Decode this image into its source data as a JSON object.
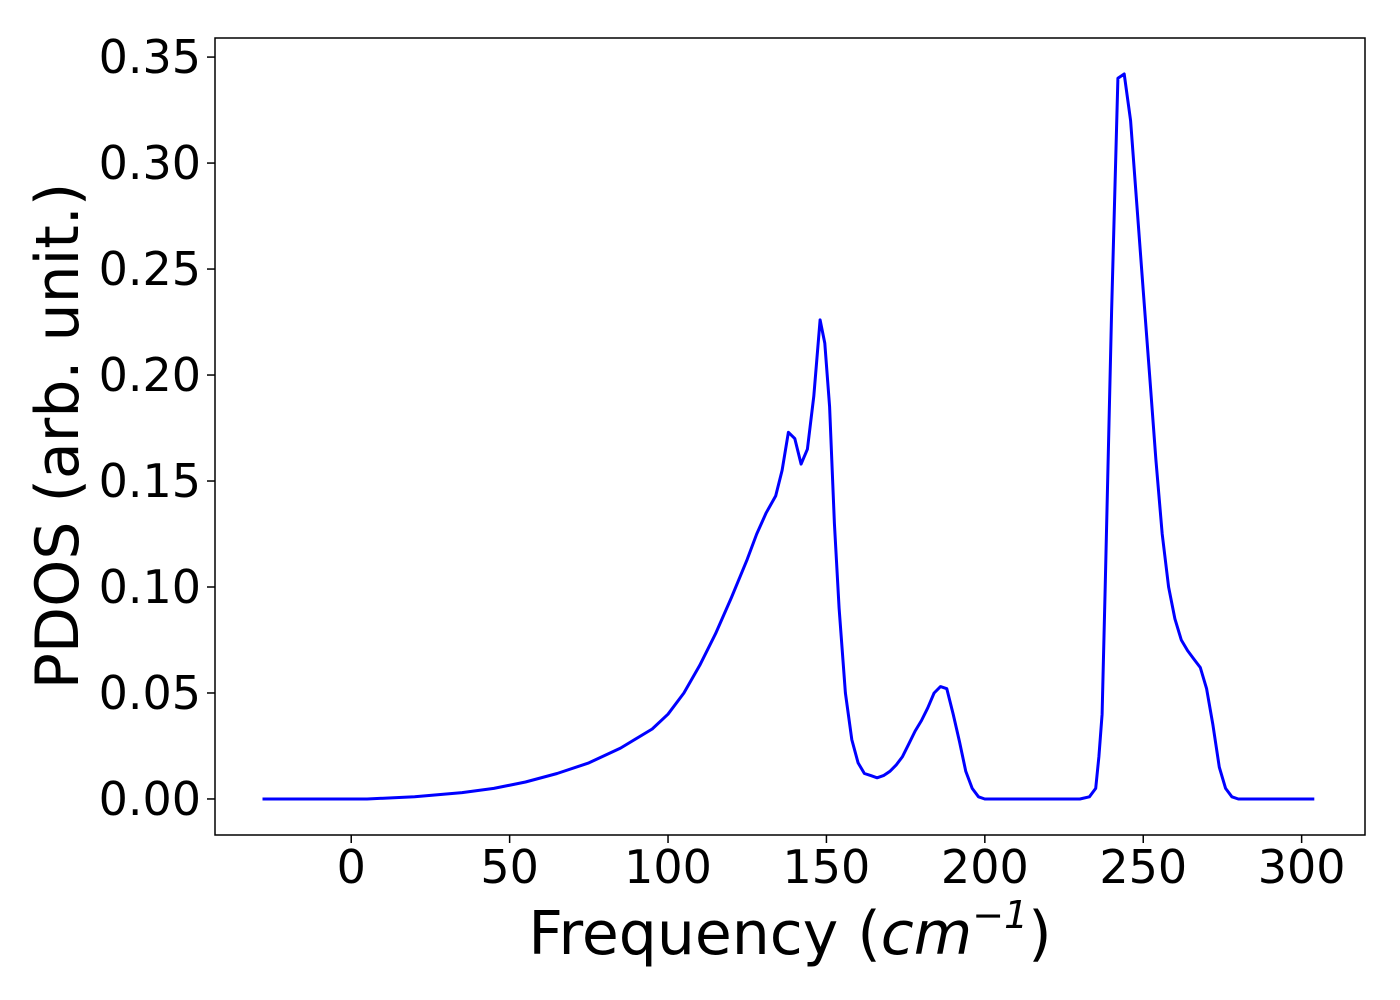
{
  "chart_data": {
    "type": "line",
    "title": "",
    "xlabel": "Frequency (",
    "xlabel_math": "cm",
    "xlabel_sup": "−1",
    "xlabel_close": ")",
    "ylabel": "PDOS (arb. unit.)",
    "xlim": [
      -43,
      320
    ],
    "ylim": [
      -0.017,
      0.359
    ],
    "xticks": [
      0,
      50,
      100,
      150,
      200,
      250,
      300
    ],
    "xtick_labels": [
      "0",
      "50",
      "100",
      "150",
      "200",
      "250",
      "300"
    ],
    "yticks": [
      0.0,
      0.05,
      0.1,
      0.15,
      0.2,
      0.25,
      0.3,
      0.35
    ],
    "ytick_labels": [
      "0.00",
      "0.05",
      "0.10",
      "0.15",
      "0.20",
      "0.25",
      "0.30",
      "0.35"
    ],
    "grid": false,
    "series": [
      {
        "color": "#0000ff",
        "x": [
          -28,
          -10,
          5,
          20,
          35,
          45,
          55,
          65,
          75,
          85,
          95,
          100,
          105,
          110,
          115,
          120,
          125,
          128,
          131,
          134,
          136,
          138,
          140,
          142,
          144,
          146,
          148,
          149.5,
          151,
          152.5,
          154,
          156,
          158,
          160,
          162,
          164,
          166,
          168,
          170,
          172,
          174,
          176,
          178,
          180,
          182,
          184,
          186,
          188,
          190,
          192,
          194,
          196,
          198,
          200,
          205,
          210,
          220,
          230,
          233,
          235,
          236,
          237,
          238,
          240,
          242,
          244,
          246,
          248,
          250,
          252,
          254,
          256,
          258,
          260,
          262,
          264,
          266,
          268,
          270,
          272,
          274,
          276,
          278,
          280,
          282,
          285,
          290,
          304
        ],
        "y": [
          0.0,
          0.0,
          0.0,
          0.001,
          0.003,
          0.005,
          0.008,
          0.012,
          0.017,
          0.024,
          0.033,
          0.04,
          0.05,
          0.063,
          0.078,
          0.095,
          0.113,
          0.125,
          0.135,
          0.143,
          0.155,
          0.173,
          0.17,
          0.158,
          0.165,
          0.19,
          0.226,
          0.215,
          0.185,
          0.13,
          0.09,
          0.05,
          0.028,
          0.017,
          0.012,
          0.011,
          0.01,
          0.011,
          0.013,
          0.016,
          0.02,
          0.026,
          0.032,
          0.037,
          0.043,
          0.05,
          0.053,
          0.052,
          0.04,
          0.027,
          0.013,
          0.005,
          0.001,
          0.0,
          0.0,
          0.0,
          0.0,
          0.0,
          0.001,
          0.005,
          0.02,
          0.04,
          0.1,
          0.23,
          0.34,
          0.342,
          0.32,
          0.28,
          0.24,
          0.2,
          0.16,
          0.125,
          0.1,
          0.085,
          0.075,
          0.07,
          0.066,
          0.062,
          0.052,
          0.035,
          0.015,
          0.005,
          0.001,
          0.0,
          0.0,
          0.0,
          0.0,
          0.0
        ]
      }
    ]
  }
}
